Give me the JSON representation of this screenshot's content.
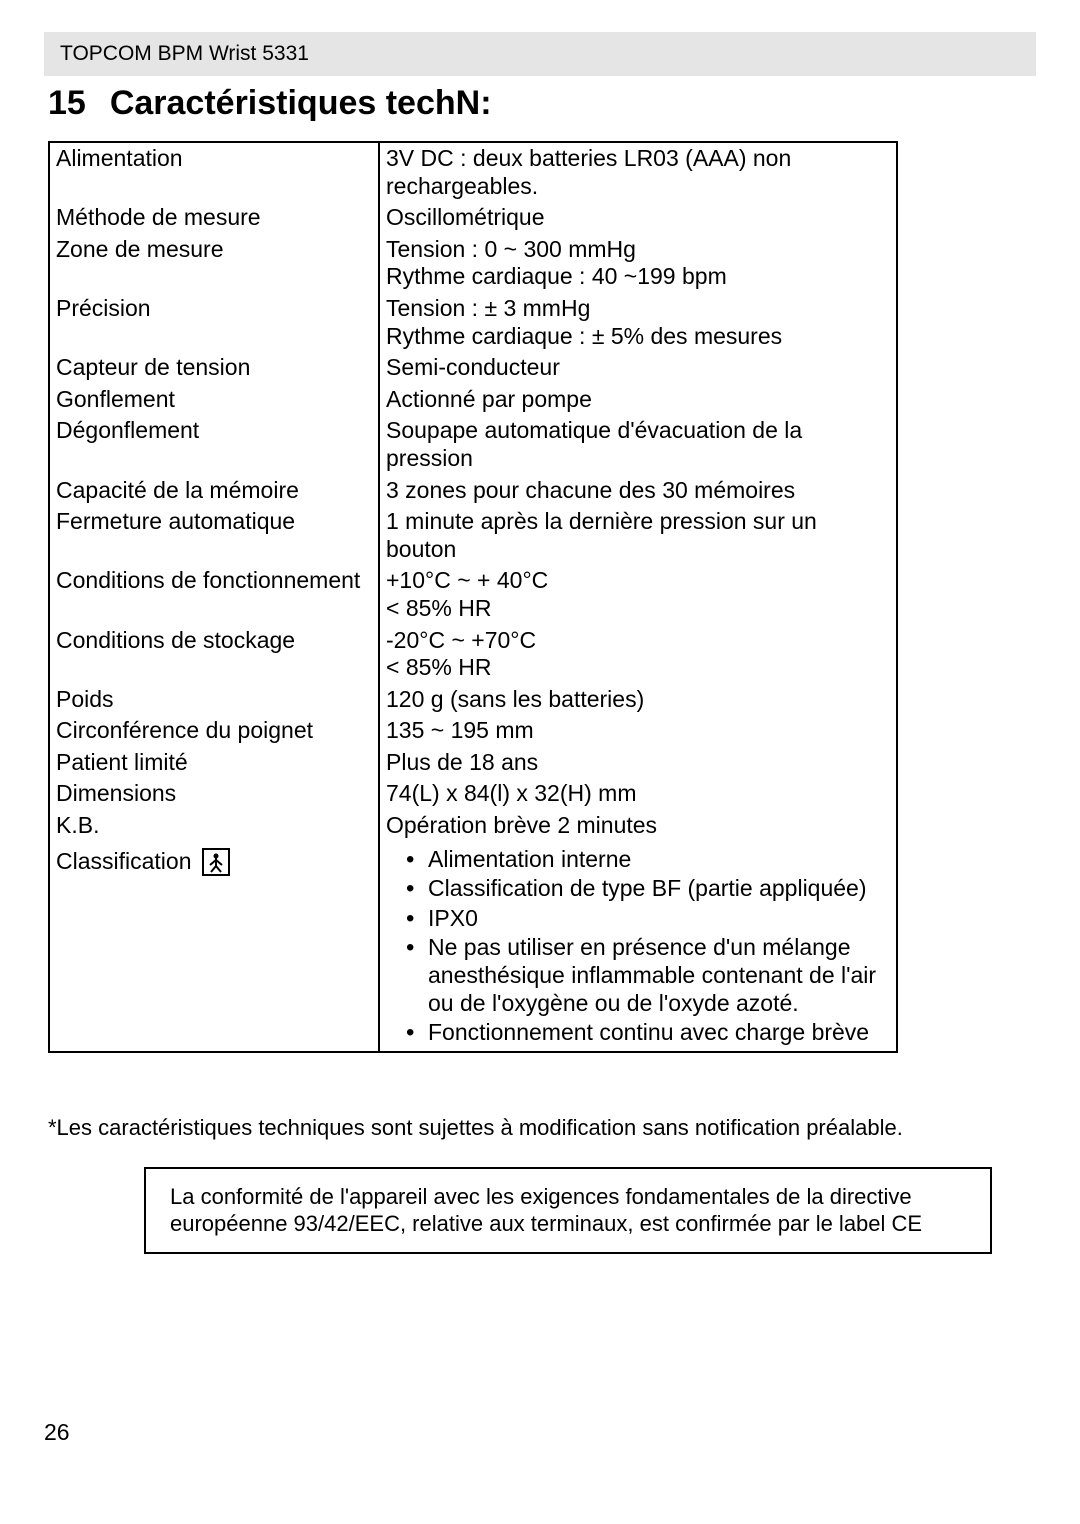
{
  "header": {
    "text": "TOPCOM BPM Wrist 5331"
  },
  "section": {
    "number": "15",
    "title": "Caractéristiques techN:"
  },
  "table": {
    "rows": [
      {
        "label": "Alimentation",
        "value": "3V DC : deux batteries LR03 (AAA) non rechargeables."
      },
      {
        "label": "Méthode de mesure",
        "value": "Oscillométrique"
      },
      {
        "label": "Zone de mesure",
        "value": "Tension : 0 ~ 300 mmHg\nRythme cardiaque : 40 ~199 bpm"
      },
      {
        "label": "Précision",
        "value": "Tension : ± 3 mmHg\nRythme cardiaque : ± 5% des mesures"
      },
      {
        "label": "Capteur de tension",
        "value": "Semi-conducteur"
      },
      {
        "label": "Gonflement",
        "value": "Actionné par pompe"
      },
      {
        "label": "Dégonflement",
        "value": "Soupape automatique d'évacuation de la pression"
      },
      {
        "label": "Capacité de la mémoire",
        "value": "3 zones pour chacune des 30 mémoires"
      },
      {
        "label": "Fermeture automatique",
        "value": "1 minute après la dernière pression sur un bouton"
      },
      {
        "label": "Conditions de fonctionnement",
        "value": "+10°C ~ + 40°C\n< 85% HR"
      },
      {
        "label": "Conditions de stockage",
        "value": "-20°C ~ +70°C\n< 85% HR"
      },
      {
        "label": "Poids",
        "value": "120 g (sans les batteries)"
      },
      {
        "label": "Circonférence du poignet",
        "value": "135 ~ 195 mm"
      },
      {
        "label": "Patient limité",
        "value": "Plus de 18 ans"
      },
      {
        "label": "Dimensions",
        "value": "74(L) x 84(l) x 32(H) mm"
      },
      {
        "label": "K.B.",
        "value": "Opération brève 2 minutes"
      }
    ],
    "classification": {
      "label": "Classification",
      "items": [
        "Alimentation interne",
        "Classification de type BF (partie appliquée)",
        "IPX0",
        "Ne pas utiliser en présence d'un mélange anesthésique inflammable contenant de l'air ou de l'oxygène ou de l'oxyde azoté.",
        "Fonctionnement continu avec charge brève"
      ]
    }
  },
  "footnote": "*Les caractéristiques techniques sont sujettes à modification sans notification préalable.",
  "compliance": "La conformité de l'appareil avec les exigences fondamentales de la directive européenne 93/42/EEC, relative aux terminaux, est confirmée par le label CE",
  "page_number": "26",
  "colors": {
    "header_bg": "#e5e5e5",
    "border": "#000000",
    "text": "#000000",
    "bg": "#ffffff"
  },
  "typography": {
    "title_fontsize": 34,
    "body_fontsize": 23,
    "header_fontsize": 21
  }
}
